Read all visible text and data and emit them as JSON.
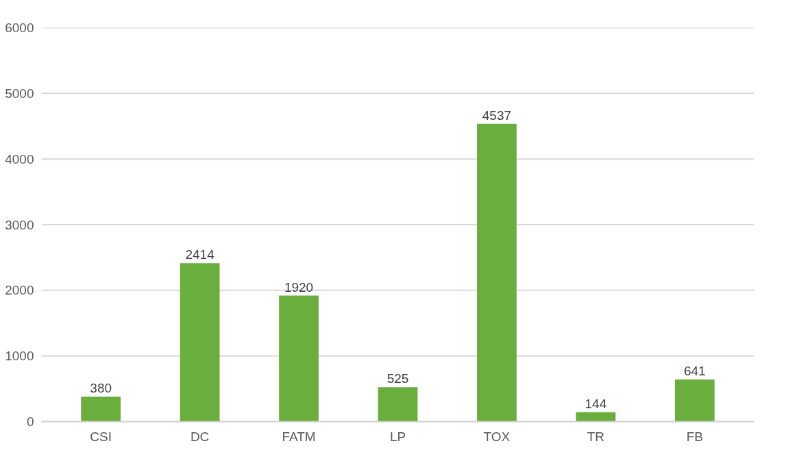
{
  "chart_data": {
    "type": "bar",
    "categories": [
      "CSI",
      "DC",
      "FATM",
      "LP",
      "TOX",
      "TR",
      "FB"
    ],
    "values": [
      380,
      2414,
      1920,
      525,
      4537,
      144,
      641
    ],
    "color": "#6aae3e",
    "ylim": [
      0,
      6000
    ],
    "yticks": [
      0,
      1000,
      2000,
      3000,
      4000,
      5000,
      6000
    ],
    "grid": "y",
    "data_labels": true
  }
}
